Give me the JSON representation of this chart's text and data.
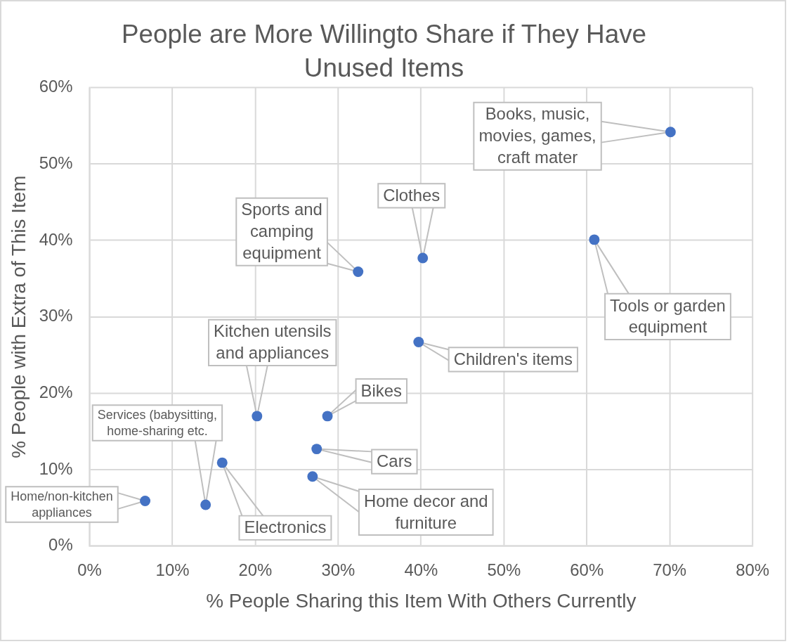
{
  "chart_data": {
    "type": "scatter",
    "title": "People are More Willingto Share if They Have Unused Items",
    "xlabel": "% People Sharing this Item With Others Currently",
    "ylabel": "% People with Extra of This Item",
    "x": [
      6.7,
      14.0,
      16.0,
      20.2,
      28.7,
      27.4,
      26.9,
      32.4,
      40.2,
      39.7,
      60.9,
      70.1
    ],
    "values": [
      5.9,
      5.4,
      10.9,
      17.0,
      17.0,
      12.7,
      9.1,
      35.9,
      37.7,
      26.7,
      40.1,
      54.2
    ],
    "color": "#4472c4",
    "marker": "circle",
    "grid": true,
    "xlim": [
      0,
      80
    ],
    "ylim": [
      0,
      60
    ],
    "xticks": [
      {
        "value": 0,
        "label": "0%"
      },
      {
        "value": 10,
        "label": "10%"
      },
      {
        "value": 20,
        "label": "20%"
      },
      {
        "value": 30,
        "label": "30%"
      },
      {
        "value": 40,
        "label": "40%"
      },
      {
        "value": 50,
        "label": "50%"
      },
      {
        "value": 60,
        "label": "60%"
      },
      {
        "value": 70,
        "label": "70%"
      },
      {
        "value": 80,
        "label": "80%"
      }
    ],
    "yticks": [
      {
        "value": 0,
        "label": "0%"
      },
      {
        "value": 10,
        "label": "10%"
      },
      {
        "value": 20,
        "label": "20%"
      },
      {
        "value": 30,
        "label": "30%"
      },
      {
        "value": 40,
        "label": "40%"
      },
      {
        "value": 50,
        "label": "50%"
      },
      {
        "value": 60,
        "label": "60%"
      }
    ],
    "annotations": [
      {
        "text": "Home/non-kitchen appliances",
        "x": 6.7,
        "y": 5.9
      },
      {
        "text": "Services (babysitting, home-sharing etc.",
        "x": 14.0,
        "y": 5.4
      },
      {
        "text": "Electronics",
        "x": 16.0,
        "y": 10.9
      },
      {
        "text": "Kitchen utensils and appliances",
        "x": 20.2,
        "y": 17.0
      },
      {
        "text": "Bikes",
        "x": 28.7,
        "y": 17.0
      },
      {
        "text": "Cars",
        "x": 27.4,
        "y": 12.7
      },
      {
        "text": "Home decor and furniture",
        "x": 26.9,
        "y": 9.1
      },
      {
        "text": "Sports and camping equipment",
        "x": 32.4,
        "y": 35.9
      },
      {
        "text": "Clothes",
        "x": 40.2,
        "y": 37.7
      },
      {
        "text": "Children's items",
        "x": 39.7,
        "y": 26.7
      },
      {
        "text": "Tools or garden equipment",
        "x": 60.9,
        "y": 40.1
      },
      {
        "text": "Books, music, movies, games, craft mater",
        "x": 70.1,
        "y": 54.2
      }
    ]
  }
}
